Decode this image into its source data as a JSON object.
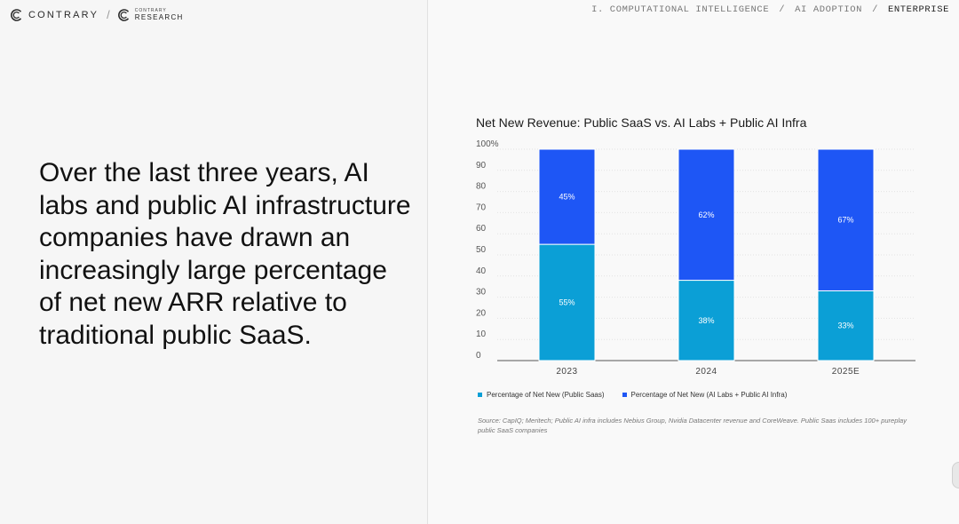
{
  "header": {
    "brand": "CONTRARY",
    "sub_brand_small": "CONTRARY",
    "sub_brand_big": "RESEARCH",
    "breadcrumb": {
      "section": "I. COMPUTATIONAL INTELLIGENCE",
      "subsection": "AI ADOPTION",
      "current": "ENTERPRISE",
      "separator": "/"
    }
  },
  "headline": "Over the last three years, AI labs and public AI infrastructure companies have drawn an increasingly large percentage of net new ARR relative to traditional public SaaS.",
  "colors": {
    "public_saas": "#0b9fd6",
    "ai_labs": "#1e56f5"
  },
  "chart_data": {
    "type": "bar",
    "stacked": true,
    "title": "Net New Revenue: Public SaaS vs. AI Labs + Public AI Infra",
    "categories": [
      "2023",
      "2024",
      "2025E"
    ],
    "series": [
      {
        "name": "Percentage of Net New (Public Saas)",
        "values": [
          55,
          38,
          33
        ],
        "labels": [
          "55%",
          "38%",
          "33%"
        ]
      },
      {
        "name": "Percentage of Net New (AI Labs + Public AI Infra)",
        "values": [
          45,
          62,
          67
        ],
        "labels": [
          "45%",
          "62%",
          "67%"
        ]
      }
    ],
    "ylim": [
      0,
      100
    ],
    "yticks": [
      "0",
      "10",
      "20",
      "30",
      "40",
      "50",
      "60",
      "70",
      "80",
      "90",
      "100%"
    ],
    "xlabel": "",
    "ylabel": "",
    "legend_position": "bottom",
    "grid": true
  },
  "source": "Source: CapIQ; Meritech; Public AI infra includes Nebius Group, Nvidia Datacenter revenue and CoreWeave. Public Saas includes 100+ pureplay public SaaS companies"
}
